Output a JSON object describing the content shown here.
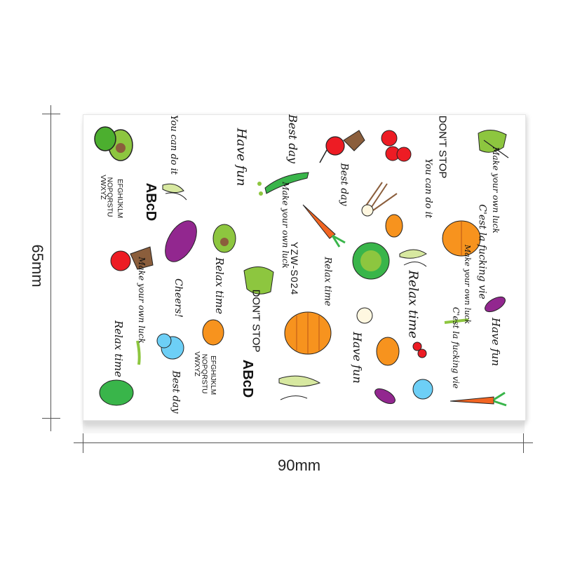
{
  "dimensions": {
    "height_label": "65mm",
    "width_label": "90mm"
  },
  "sheet": {
    "product_code": "YZW-S024",
    "phrases": {
      "have_fun": "Have fun",
      "best_day": "Best day",
      "dont_stop": "DON'T STOP",
      "you_can_do_it": "You can do it",
      "make_your_own_luck": "Make your own luck",
      "relax_time": "Relax time",
      "cheers": "Cheers!",
      "cest_la_vie": "C'est la fucking vie",
      "abcd": "ABcD",
      "alphabet_line1": "EFGHIJKLM",
      "alphabet_line2": "NOPQRSTU",
      "alphabet_line3": "VWXYZ"
    }
  },
  "colors": {
    "pumpkin": "#f7931e",
    "carrot": "#f26522",
    "lettuce": "#39b54a",
    "lime": "#8dc63f",
    "cherry": "#ed1c24",
    "eggplant": "#92278f",
    "broccoli_blue": "#6dcff6",
    "leaf_brown": "#8b5e3c",
    "cucumber": "#d7e8a0"
  },
  "icons": [
    "avocado-icon",
    "radish-icon",
    "cherry-icon",
    "kale-icon",
    "pea-pod-icon",
    "carrot-icon",
    "scallion-icon",
    "potato-icon",
    "pumpkin-icon",
    "cabbage-icon",
    "eggplant-icon",
    "broccoli-icon",
    "cucumber-icon",
    "garlic-icon",
    "bean-icon"
  ]
}
